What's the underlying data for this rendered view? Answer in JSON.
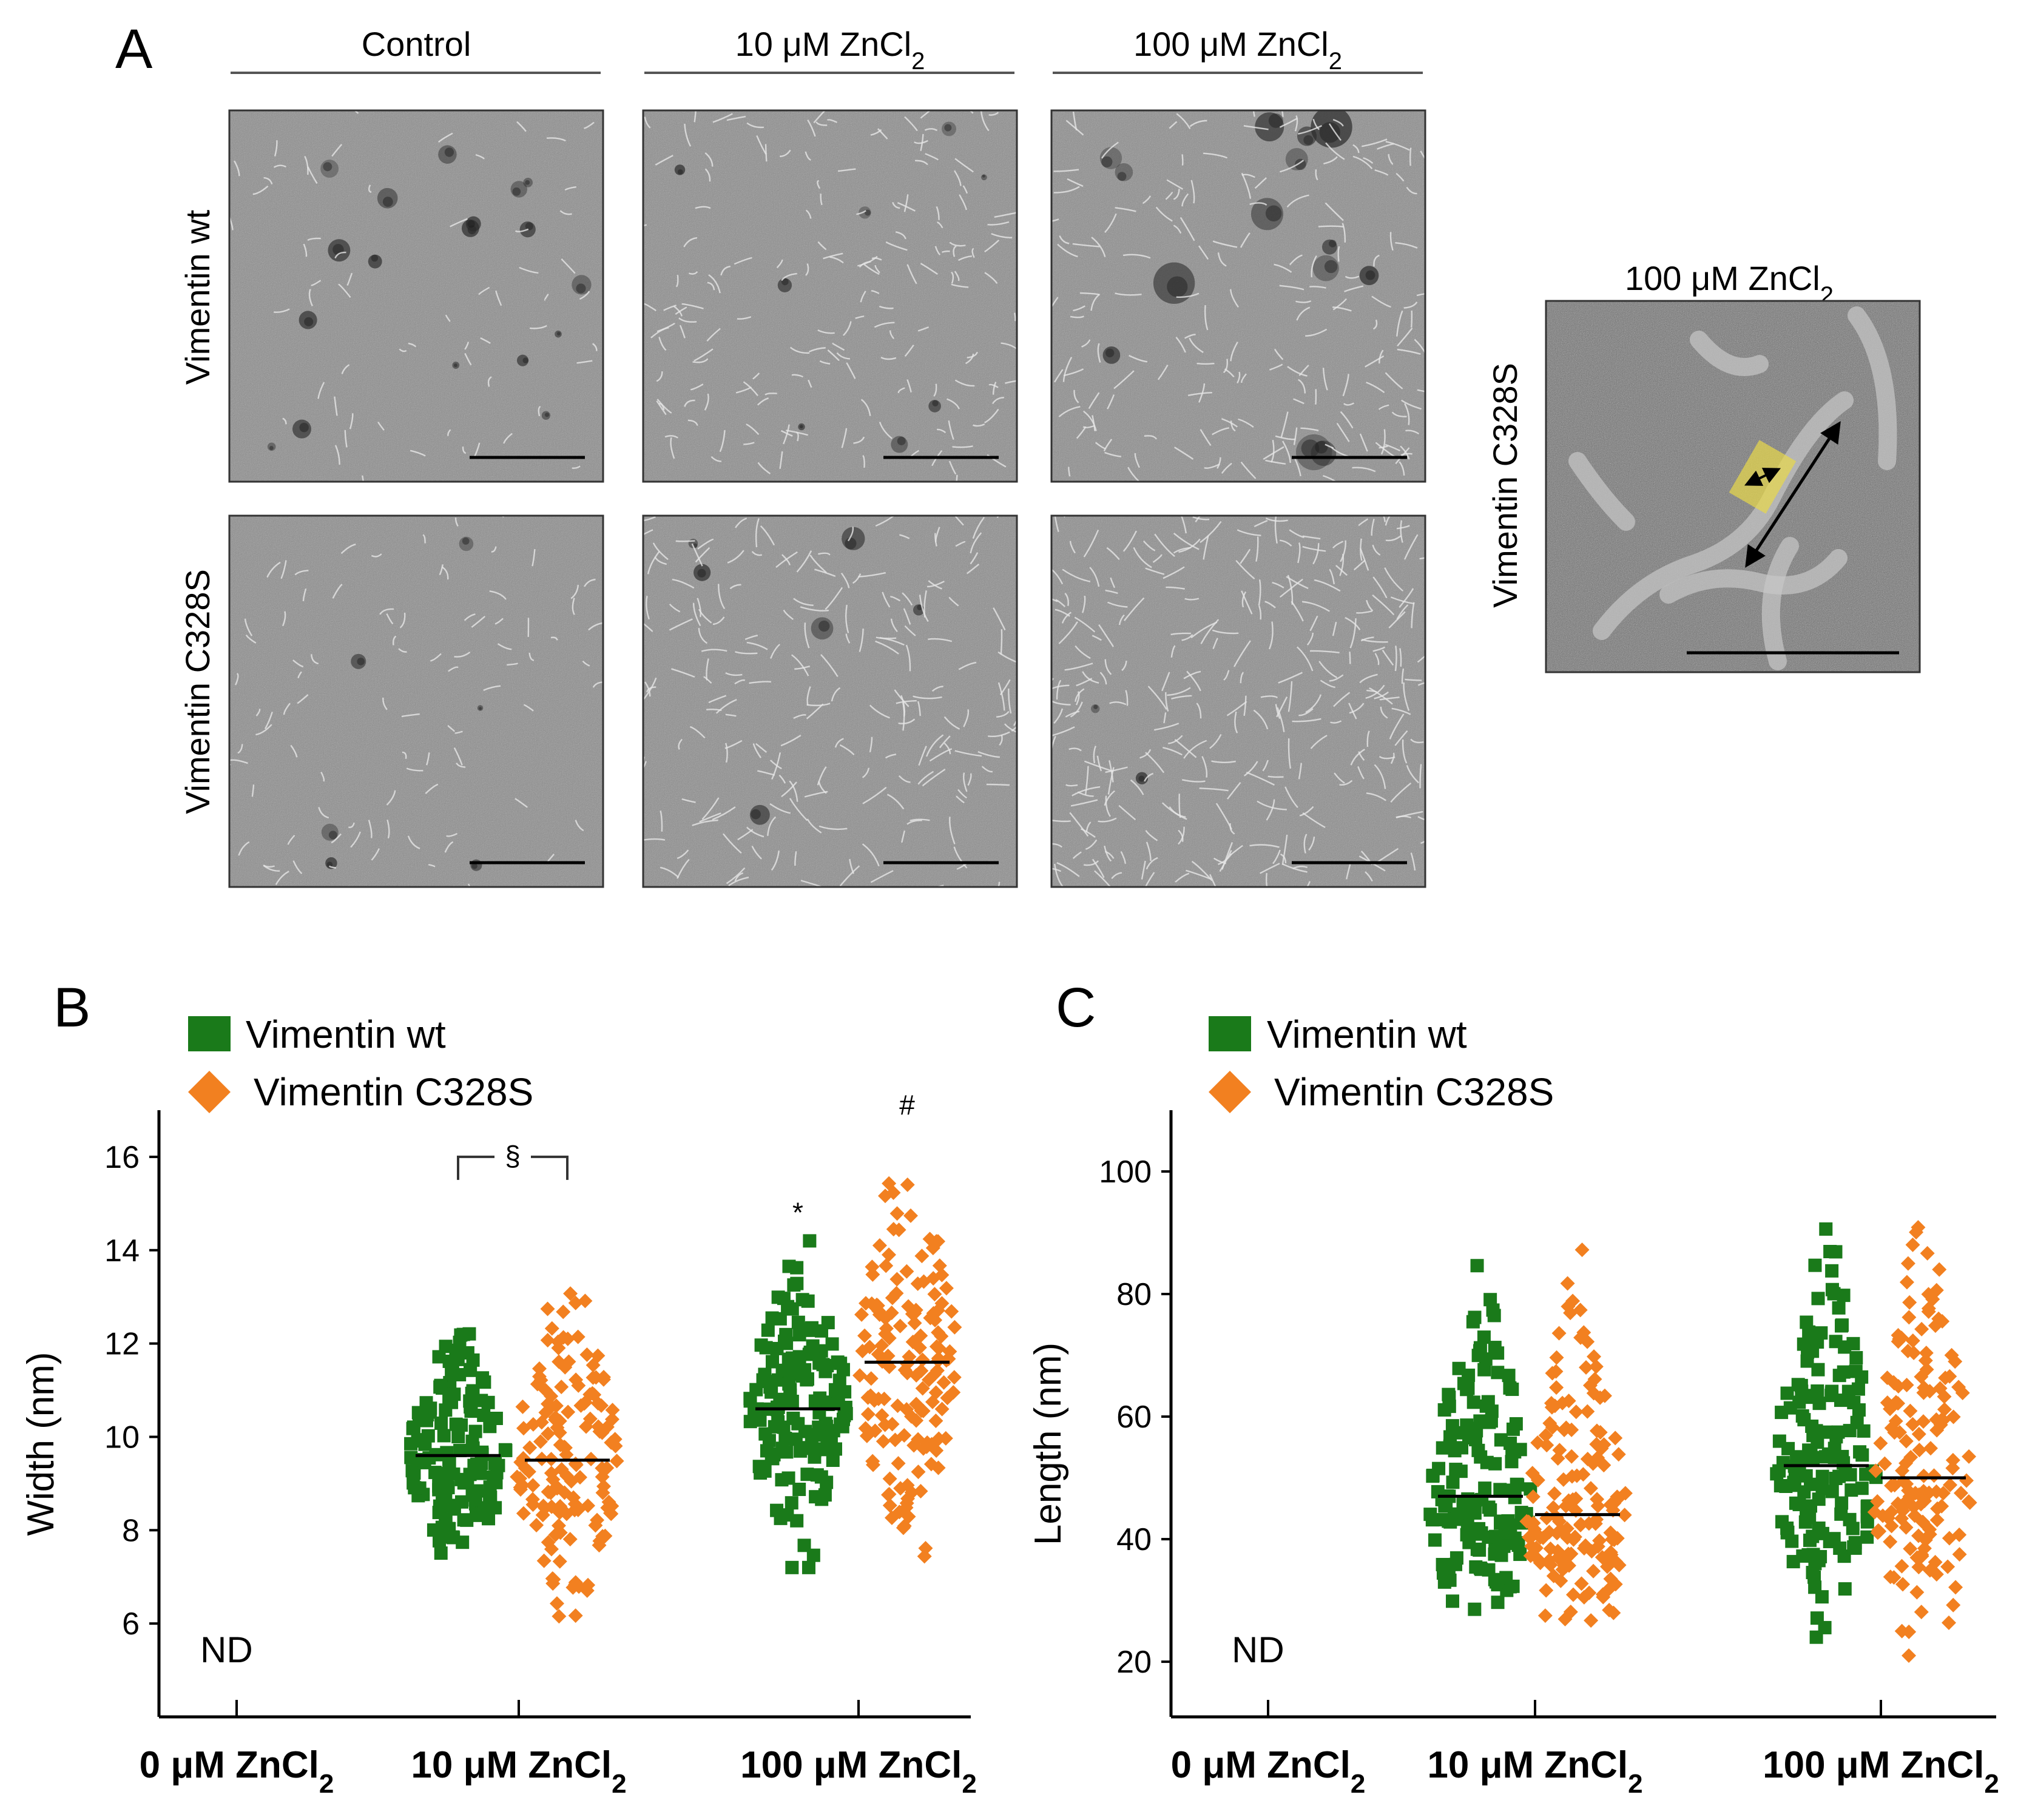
{
  "panelA": {
    "letter": "A",
    "columns": [
      {
        "base": "Control",
        "sub": ""
      },
      {
        "base": "10 μM ZnCl",
        "sub": "2"
      },
      {
        "base": "100 μM ZnCl",
        "sub": "2"
      }
    ],
    "rows": [
      "Vimentin wt",
      "Vimentin C328S"
    ],
    "inset": {
      "title_base": "100 μM ZnCl",
      "title_sub": "2",
      "row_label": "Vimentin C328S"
    }
  },
  "legend": {
    "wt_label": "Vimentin wt",
    "mut_label": "Vimentin C328S",
    "wt_color": "#1a7a1a",
    "mut_color": "#f28020"
  },
  "chart_data": [
    {
      "panel": "B",
      "type": "scatter",
      "ylabel": "Width (nm)",
      "ylim": [
        4.0,
        17.0
      ],
      "yticks": [
        6,
        8,
        10,
        12,
        14,
        16
      ],
      "categories": [
        {
          "base": "0 μM ZnCl",
          "sub": "2"
        },
        {
          "base": "10 μM ZnCl",
          "sub": "2"
        },
        {
          "base": "100 μM ZnCl",
          "sub": "2"
        }
      ],
      "nd_label": "ND",
      "series": [
        {
          "name": "Vimentin wt",
          "color": "#1a7a1a",
          "marker": "square",
          "groups": [
            null,
            {
              "min": 7.3,
              "max": 13.0,
              "mean": 9.6
            },
            {
              "min": 7.2,
              "max": 14.2,
              "mean": 10.6
            }
          ]
        },
        {
          "name": "Vimentin C328S",
          "color": "#f28020",
          "marker": "diamond",
          "groups": [
            null,
            {
              "min": 5.5,
              "max": 14.5,
              "mean": 9.5
            },
            {
              "min": 6.2,
              "max": 16.3,
              "mean": 11.6
            }
          ]
        }
      ],
      "annotations": [
        {
          "text": "§",
          "kind": "bracket",
          "category": 1,
          "y": 16.0
        },
        {
          "text": "*",
          "kind": "mark",
          "category": 2,
          "series": 0,
          "y": 14.6
        },
        {
          "text": "#",
          "kind": "mark",
          "category": 2,
          "series": 1,
          "y": 16.9
        }
      ]
    },
    {
      "panel": "C",
      "type": "scatter",
      "ylabel": "Length (nm)",
      "ylim": [
        11,
        110
      ],
      "yticks": [
        20,
        40,
        60,
        80,
        100
      ],
      "categories": [
        {
          "base": "0 μM ZnCl",
          "sub": "2"
        },
        {
          "base": "10 μM ZnCl",
          "sub": "2"
        },
        {
          "base": "100 μM ZnCl",
          "sub": "2"
        }
      ],
      "nd_label": "ND",
      "series": [
        {
          "name": "Vimentin wt",
          "color": "#1a7a1a",
          "marker": "square",
          "groups": [
            null,
            {
              "min": 25,
              "max": 95,
              "mean": 47
            },
            {
              "min": 24,
              "max": 95,
              "mean": 52
            }
          ]
        },
        {
          "name": "Vimentin C328S",
          "color": "#f28020",
          "marker": "diamond",
          "groups": [
            null,
            {
              "min": 21,
              "max": 97,
              "mean": 44
            },
            {
              "min": 21,
              "max": 98,
              "mean": 50
            }
          ]
        }
      ],
      "annotations": []
    }
  ]
}
